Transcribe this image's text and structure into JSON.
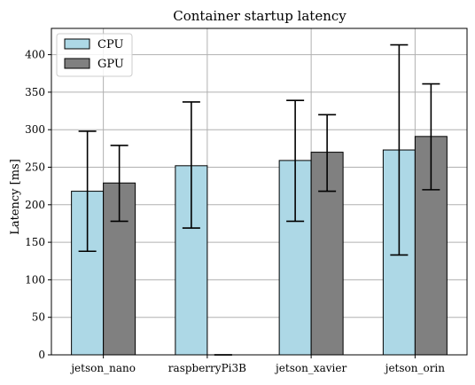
{
  "chart_data": {
    "type": "bar",
    "title": "Container startup latency",
    "xlabel": "",
    "ylabel": "Latency [ms]",
    "categories": [
      "jetson_nano",
      "raspberryPi3B",
      "jetson_xavier",
      "jetson_orin"
    ],
    "ylim": [
      0,
      435
    ],
    "yticks": [
      "0",
      "50",
      "100",
      "150",
      "200",
      "250",
      "300",
      "350",
      "400"
    ],
    "grid": true,
    "legend_position": "top-left",
    "series": [
      {
        "name": "CPU",
        "color": "#add8e6",
        "values": [
          218,
          252,
          259,
          273
        ],
        "error_low": [
          138,
          169,
          178,
          133
        ],
        "error_high": [
          298,
          337,
          339,
          413
        ]
      },
      {
        "name": "GPU",
        "color": "#808080",
        "values": [
          229,
          0,
          270,
          291
        ],
        "error_low": [
          178,
          0,
          218,
          220
        ],
        "error_high": [
          279,
          0,
          320,
          361
        ]
      }
    ]
  }
}
